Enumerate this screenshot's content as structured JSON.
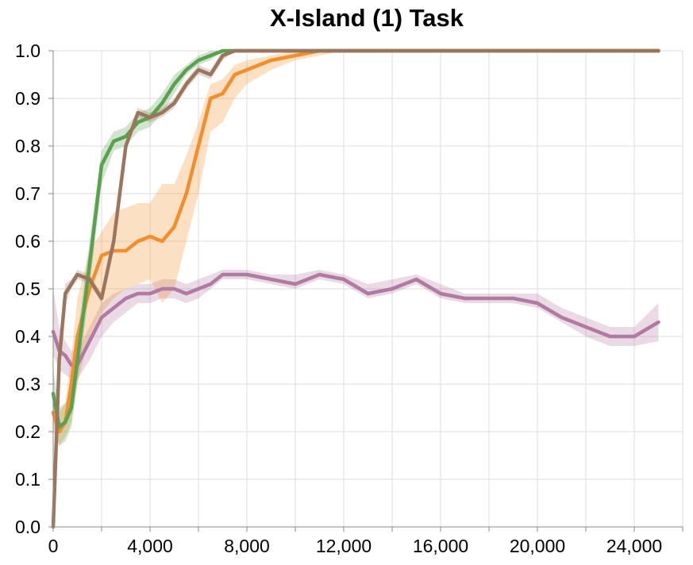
{
  "chart_data": {
    "type": "line",
    "title": "X-Island (1) Task",
    "x": [
      0,
      250,
      500,
      750,
      1000,
      1500,
      2000,
      2500,
      3000,
      3500,
      4000,
      4500,
      5000,
      5500,
      6000,
      6500,
      7000,
      7500,
      8000,
      9000,
      10000,
      11000,
      12000,
      13000,
      14000,
      15000,
      16000,
      17000,
      18000,
      19000,
      20000,
      21000,
      22000,
      23000,
      24000,
      25000
    ],
    "series": [
      {
        "color": "#b07aa1",
        "values": [
          0.41,
          0.37,
          0.36,
          0.34,
          0.34,
          0.39,
          0.44,
          0.46,
          0.48,
          0.49,
          0.49,
          0.5,
          0.5,
          0.49,
          0.5,
          0.51,
          0.53,
          0.53,
          0.53,
          0.52,
          0.51,
          0.53,
          0.52,
          0.49,
          0.5,
          0.52,
          0.49,
          0.48,
          0.48,
          0.48,
          0.47,
          0.44,
          0.42,
          0.4,
          0.4,
          0.43
        ],
        "lower": [
          0.36,
          0.33,
          0.32,
          0.31,
          0.31,
          0.35,
          0.4,
          0.43,
          0.45,
          0.47,
          0.47,
          0.48,
          0.48,
          0.47,
          0.48,
          0.5,
          0.52,
          0.52,
          0.52,
          0.51,
          0.5,
          0.52,
          0.51,
          0.48,
          0.49,
          0.51,
          0.48,
          0.47,
          0.47,
          0.47,
          0.46,
          0.43,
          0.4,
          0.38,
          0.38,
          0.39
        ],
        "upper": [
          0.5,
          0.42,
          0.39,
          0.37,
          0.37,
          0.42,
          0.47,
          0.49,
          0.5,
          0.51,
          0.51,
          0.52,
          0.52,
          0.51,
          0.52,
          0.53,
          0.54,
          0.54,
          0.54,
          0.53,
          0.53,
          0.54,
          0.53,
          0.51,
          0.52,
          0.53,
          0.51,
          0.49,
          0.49,
          0.49,
          0.49,
          0.46,
          0.44,
          0.42,
          0.42,
          0.47
        ]
      },
      {
        "color": "#f28e2b",
        "values": [
          0.24,
          0.2,
          0.22,
          0.3,
          0.4,
          0.5,
          0.57,
          0.58,
          0.58,
          0.6,
          0.61,
          0.6,
          0.63,
          0.7,
          0.8,
          0.9,
          0.91,
          0.95,
          0.96,
          0.98,
          0.99,
          1.0,
          1.0,
          1.0,
          1.0,
          1.0,
          1.0,
          1.0,
          1.0,
          1.0,
          1.0,
          1.0,
          1.0,
          1.0,
          1.0,
          1.0
        ],
        "lower": [
          0.2,
          0.17,
          0.19,
          0.22,
          0.3,
          0.4,
          0.45,
          0.48,
          0.5,
          0.51,
          0.52,
          0.47,
          0.5,
          0.6,
          0.7,
          0.83,
          0.85,
          0.9,
          0.93,
          0.96,
          0.98,
          0.99,
          1.0,
          1.0,
          1.0,
          1.0,
          1.0,
          1.0,
          1.0,
          1.0,
          1.0,
          1.0,
          1.0,
          1.0,
          1.0,
          1.0
        ],
        "upper": [
          0.28,
          0.24,
          0.26,
          0.36,
          0.48,
          0.58,
          0.62,
          0.66,
          0.67,
          0.68,
          0.68,
          0.72,
          0.72,
          0.78,
          0.85,
          0.93,
          0.94,
          0.97,
          0.98,
          0.99,
          1.0,
          1.0,
          1.0,
          1.0,
          1.0,
          1.0,
          1.0,
          1.0,
          1.0,
          1.0,
          1.0,
          1.0,
          1.0,
          1.0,
          1.0,
          1.0
        ]
      },
      {
        "color": "#59a14f",
        "values": [
          0.28,
          0.21,
          0.22,
          0.25,
          0.35,
          0.55,
          0.76,
          0.81,
          0.82,
          0.85,
          0.86,
          0.89,
          0.93,
          0.96,
          0.98,
          0.99,
          1.0,
          1.0,
          1.0,
          1.0,
          1.0,
          1.0,
          1.0,
          1.0,
          1.0,
          1.0,
          1.0,
          1.0,
          1.0,
          1.0,
          1.0,
          1.0,
          1.0,
          1.0,
          1.0,
          1.0
        ],
        "lower": [
          0.22,
          0.17,
          0.18,
          0.21,
          0.3,
          0.5,
          0.72,
          0.79,
          0.8,
          0.83,
          0.84,
          0.87,
          0.91,
          0.95,
          0.97,
          0.98,
          1.0,
          1.0,
          1.0,
          1.0,
          1.0,
          1.0,
          1.0,
          1.0,
          1.0,
          1.0,
          1.0,
          1.0,
          1.0,
          1.0,
          1.0,
          1.0,
          1.0,
          1.0,
          1.0,
          1.0
        ],
        "upper": [
          0.33,
          0.25,
          0.26,
          0.29,
          0.4,
          0.6,
          0.79,
          0.83,
          0.84,
          0.87,
          0.88,
          0.91,
          0.95,
          0.97,
          0.99,
          1.0,
          1.0,
          1.0,
          1.0,
          1.0,
          1.0,
          1.0,
          1.0,
          1.0,
          1.0,
          1.0,
          1.0,
          1.0,
          1.0,
          1.0,
          1.0,
          1.0,
          1.0,
          1.0,
          1.0,
          1.0
        ]
      },
      {
        "color": "#9c755f",
        "values": [
          0.0,
          0.35,
          0.49,
          0.51,
          0.53,
          0.52,
          0.48,
          0.6,
          0.8,
          0.87,
          0.86,
          0.87,
          0.89,
          0.93,
          0.96,
          0.95,
          0.99,
          1.0,
          1.0,
          1.0,
          1.0,
          1.0,
          1.0,
          1.0,
          1.0,
          1.0,
          1.0,
          1.0,
          1.0,
          1.0,
          1.0,
          1.0,
          1.0,
          1.0,
          1.0,
          1.0
        ],
        "lower": [
          0.0,
          0.33,
          0.47,
          0.5,
          0.52,
          0.51,
          0.47,
          0.59,
          0.79,
          0.86,
          0.85,
          0.86,
          0.88,
          0.92,
          0.95,
          0.94,
          0.98,
          1.0,
          1.0,
          1.0,
          1.0,
          1.0,
          1.0,
          1.0,
          1.0,
          1.0,
          1.0,
          1.0,
          1.0,
          1.0,
          1.0,
          1.0,
          1.0,
          1.0,
          1.0,
          1.0
        ],
        "upper": [
          0.0,
          0.37,
          0.51,
          0.52,
          0.54,
          0.53,
          0.49,
          0.61,
          0.81,
          0.88,
          0.87,
          0.88,
          0.9,
          0.94,
          0.97,
          0.96,
          1.0,
          1.0,
          1.0,
          1.0,
          1.0,
          1.0,
          1.0,
          1.0,
          1.0,
          1.0,
          1.0,
          1.0,
          1.0,
          1.0,
          1.0,
          1.0,
          1.0,
          1.0,
          1.0,
          1.0
        ]
      }
    ],
    "xlim": [
      0,
      26000
    ],
    "xticks": [
      0,
      {
        "value": 4000,
        "label": "4,000"
      },
      {
        "value": 8000,
        "label": "8,000"
      },
      {
        "value": 12000,
        "label": "12,000"
      },
      {
        "value": 16000,
        "label": "16,000"
      },
      {
        "value": 20000,
        "label": "20,000"
      },
      {
        "value": 24000,
        "label": "24,000"
      }
    ],
    "xgrid": [
      2000,
      6000,
      10000,
      14000,
      18000,
      22000,
      26000
    ],
    "ylim": [
      0,
      1
    ],
    "yticks": [
      {
        "value": 0,
        "label": "0.0"
      },
      0.1,
      0.2,
      0.3,
      0.4,
      0.5,
      0.6,
      0.7,
      0.8,
      0.9,
      {
        "value": 1,
        "label": "1.0"
      }
    ],
    "grid": true
  }
}
